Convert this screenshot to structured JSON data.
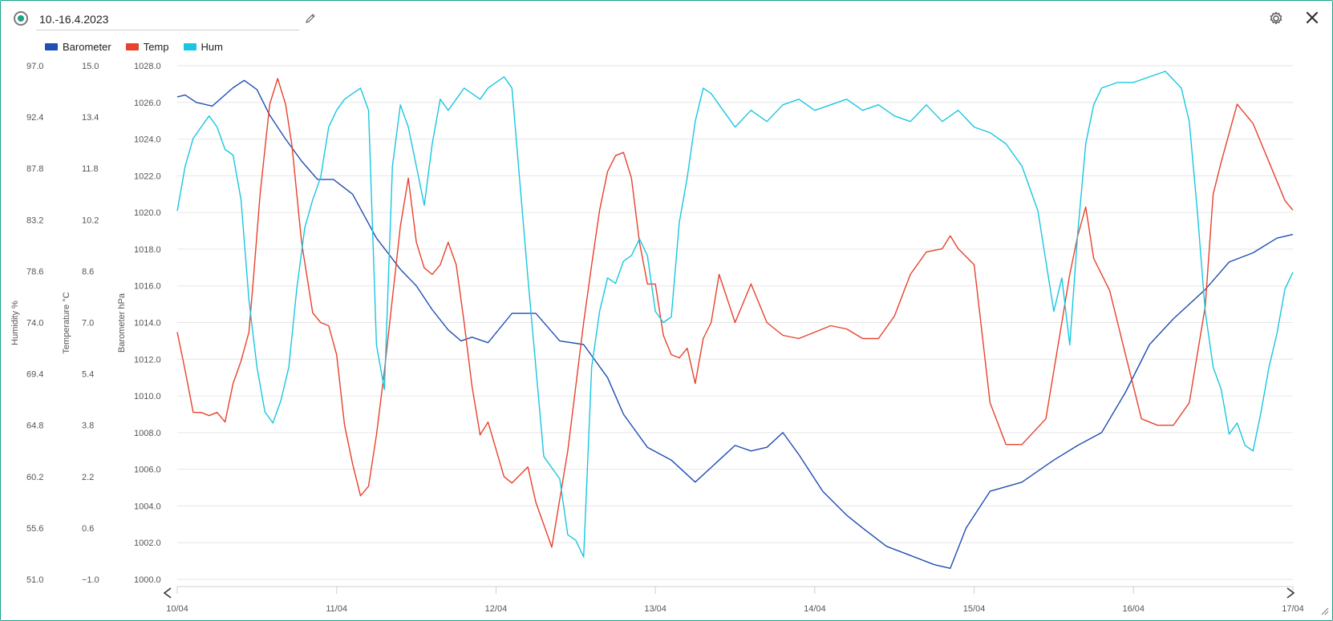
{
  "window": {
    "title": "10.-16.4.2023",
    "icons": {
      "status": "status-dot-icon",
      "edit": "pencil-icon",
      "settings": "gear-icon",
      "close": "close-icon"
    }
  },
  "chart_data": {
    "type": "line",
    "title": "",
    "legend_position": "top-left",
    "grid": true,
    "x": {
      "ticks": [
        "10/04",
        "11/04",
        "12/04",
        "13/04",
        "14/04",
        "15/04",
        "16/04",
        "17/04"
      ],
      "range_days": [
        0,
        7
      ]
    },
    "axes": {
      "humidity": {
        "label": "Humidity %",
        "range": [
          51.0,
          97.0
        ],
        "ticks": [
          "97.0",
          "92.4",
          "87.8",
          "83.2",
          "78.6",
          "74.0",
          "69.4",
          "64.8",
          "60.2",
          "55.6",
          "51.0"
        ]
      },
      "temperature": {
        "label": "Temperature °C",
        "range": [
          -1.0,
          15.0
        ],
        "ticks": [
          "15.0",
          "13.4",
          "11.8",
          "10.2",
          "8.6",
          "7.0",
          "5.4",
          "3.8",
          "2.2",
          "0.6",
          "−1.0"
        ]
      },
      "barometer": {
        "label": "Barometer hPa",
        "range": [
          1000.0,
          1028.0
        ],
        "ticks": [
          "1028.0",
          "1026.0",
          "1024.0",
          "1022.0",
          "1020.0",
          "1018.0",
          "1016.0",
          "1014.0",
          "1012.0",
          "1010.0",
          "1008.0",
          "1006.0",
          "1004.0",
          "1002.0",
          "1000.0"
        ]
      }
    },
    "series": [
      {
        "name": "Barometer",
        "axis": "barometer",
        "color": "#1f4eb4",
        "x": [
          0.0,
          0.05,
          0.12,
          0.22,
          0.35,
          0.42,
          0.5,
          0.58,
          0.68,
          0.78,
          0.88,
          0.98,
          1.1,
          1.25,
          1.4,
          1.5,
          1.6,
          1.7,
          1.78,
          1.85,
          1.95,
          2.1,
          2.25,
          2.4,
          2.55,
          2.7,
          2.8,
          2.95,
          3.1,
          3.25,
          3.4,
          3.5,
          3.6,
          3.7,
          3.8,
          3.9,
          4.05,
          4.2,
          4.3,
          4.45,
          4.6,
          4.75,
          4.85,
          4.95,
          5.1,
          5.3,
          5.5,
          5.65,
          5.8,
          5.95,
          6.1,
          6.25,
          6.45,
          6.6,
          6.75,
          6.9,
          7.0
        ],
        "y": [
          1026.3,
          1026.4,
          1026.0,
          1025.8,
          1026.8,
          1027.2,
          1026.7,
          1025.3,
          1024.0,
          1022.8,
          1021.8,
          1021.8,
          1021.0,
          1018.6,
          1016.9,
          1016.0,
          1014.7,
          1013.6,
          1013.0,
          1013.2,
          1012.9,
          1014.5,
          1014.5,
          1013.0,
          1012.8,
          1011.0,
          1009.0,
          1007.2,
          1006.5,
          1005.3,
          1006.5,
          1007.3,
          1007.0,
          1007.2,
          1008.0,
          1006.8,
          1004.8,
          1003.5,
          1002.8,
          1001.8,
          1001.3,
          1000.8,
          1000.6,
          1002.8,
          1004.8,
          1005.3,
          1006.5,
          1007.3,
          1008.0,
          1010.2,
          1012.8,
          1014.2,
          1015.8,
          1017.3,
          1017.8,
          1018.6,
          1018.8
        ]
      },
      {
        "name": "Temp",
        "axis": "temperature",
        "color": "#e8412c",
        "x": [
          0.0,
          0.05,
          0.1,
          0.15,
          0.2,
          0.25,
          0.3,
          0.35,
          0.4,
          0.45,
          0.48,
          0.52,
          0.58,
          0.63,
          0.68,
          0.72,
          0.78,
          0.85,
          0.9,
          0.95,
          1.0,
          1.05,
          1.1,
          1.15,
          1.2,
          1.25,
          1.3,
          1.4,
          1.45,
          1.5,
          1.55,
          1.6,
          1.65,
          1.7,
          1.75,
          1.8,
          1.85,
          1.9,
          1.95,
          2.05,
          2.1,
          2.2,
          2.25,
          2.35,
          2.45,
          2.55,
          2.6,
          2.65,
          2.7,
          2.75,
          2.8,
          2.85,
          2.9,
          2.95,
          3.0,
          3.05,
          3.1,
          3.15,
          3.2,
          3.25,
          3.3,
          3.35,
          3.4,
          3.5,
          3.6,
          3.7,
          3.8,
          3.9,
          4.0,
          4.1,
          4.2,
          4.3,
          4.4,
          4.5,
          4.6,
          4.7,
          4.8,
          4.85,
          4.9,
          5.0,
          5.1,
          5.2,
          5.3,
          5.45,
          5.55,
          5.6,
          5.65,
          5.7,
          5.75,
          5.85,
          5.95,
          6.05,
          6.15,
          6.25,
          6.35,
          6.45,
          6.5,
          6.55,
          6.65,
          6.75,
          6.85,
          6.95,
          7.0
        ],
        "y": [
          6.7,
          5.5,
          4.2,
          4.2,
          4.1,
          4.2,
          3.9,
          5.1,
          5.8,
          6.7,
          8.5,
          11.0,
          13.8,
          14.6,
          13.8,
          12.5,
          9.5,
          7.3,
          7.0,
          6.9,
          6.0,
          3.8,
          2.6,
          1.6,
          1.9,
          3.5,
          5.5,
          10.0,
          11.5,
          9.5,
          8.7,
          8.5,
          8.8,
          9.5,
          8.8,
          7.0,
          5.0,
          3.5,
          3.9,
          2.2,
          2.0,
          2.5,
          1.4,
          0.0,
          3.0,
          7.0,
          8.8,
          10.5,
          11.7,
          12.2,
          12.3,
          11.5,
          9.5,
          8.2,
          8.2,
          6.6,
          6.0,
          5.9,
          6.2,
          5.1,
          6.5,
          7.0,
          8.5,
          7.0,
          8.2,
          7.0,
          6.6,
          6.5,
          6.7,
          6.9,
          6.8,
          6.5,
          6.5,
          7.2,
          8.5,
          9.2,
          9.3,
          9.7,
          9.3,
          8.8,
          4.5,
          3.2,
          3.2,
          4.0,
          7.0,
          8.5,
          9.7,
          10.6,
          9.0,
          8.0,
          6.0,
          4.0,
          3.8,
          3.8,
          4.5,
          7.5,
          11.0,
          12.0,
          13.8,
          13.2,
          12.0,
          10.8,
          10.5
        ]
      },
      {
        "name": "Hum",
        "axis": "humidity",
        "color": "#18c6e2",
        "x": [
          0.0,
          0.05,
          0.1,
          0.15,
          0.2,
          0.25,
          0.3,
          0.35,
          0.4,
          0.45,
          0.5,
          0.55,
          0.6,
          0.65,
          0.7,
          0.75,
          0.8,
          0.85,
          0.9,
          0.95,
          1.0,
          1.05,
          1.1,
          1.15,
          1.2,
          1.25,
          1.3,
          1.35,
          1.4,
          1.45,
          1.5,
          1.55,
          1.6,
          1.65,
          1.7,
          1.75,
          1.8,
          1.85,
          1.9,
          1.95,
          2.0,
          2.05,
          2.1,
          2.2,
          2.3,
          2.4,
          2.45,
          2.5,
          2.55,
          2.6,
          2.65,
          2.7,
          2.75,
          2.8,
          2.85,
          2.9,
          2.95,
          3.0,
          3.05,
          3.1,
          3.15,
          3.2,
          3.25,
          3.3,
          3.35,
          3.4,
          3.45,
          3.5,
          3.6,
          3.7,
          3.8,
          3.9,
          4.0,
          4.1,
          4.2,
          4.3,
          4.4,
          4.5,
          4.6,
          4.7,
          4.8,
          4.9,
          5.0,
          5.1,
          5.2,
          5.3,
          5.4,
          5.5,
          5.55,
          5.6,
          5.65,
          5.7,
          5.75,
          5.8,
          5.9,
          6.0,
          6.1,
          6.2,
          6.3,
          6.35,
          6.4,
          6.45,
          6.5,
          6.55,
          6.6,
          6.65,
          6.7,
          6.75,
          6.8,
          6.85,
          6.9,
          6.95,
          7.0
        ],
        "y": [
          84.0,
          88.0,
          90.5,
          91.5,
          92.5,
          91.5,
          89.5,
          89.0,
          85.0,
          76.0,
          70.0,
          66.0,
          65.0,
          67.0,
          70.0,
          77.0,
          82.5,
          85.0,
          87.0,
          91.5,
          93.0,
          94.0,
          94.5,
          95.0,
          93.0,
          72.0,
          68.0,
          88.0,
          93.5,
          91.5,
          88.0,
          84.5,
          90.0,
          94.0,
          93.0,
          94.0,
          95.0,
          94.5,
          94.0,
          95.0,
          95.5,
          96.0,
          95.0,
          78.0,
          62.0,
          60.0,
          55.0,
          54.5,
          53.0,
          70.0,
          75.0,
          78.0,
          77.5,
          79.5,
          80.0,
          81.5,
          80.0,
          75.0,
          74.0,
          74.5,
          83.0,
          87.0,
          92.0,
          95.0,
          94.5,
          93.5,
          92.5,
          91.5,
          93.0,
          92.0,
          93.5,
          94.0,
          93.0,
          93.5,
          94.0,
          93.0,
          93.5,
          92.5,
          92.0,
          93.5,
          92.0,
          93.0,
          91.5,
          91.0,
          90.0,
          88.0,
          84.0,
          75.0,
          78.0,
          72.0,
          82.0,
          90.0,
          93.5,
          95.0,
          95.5,
          95.5,
          96.0,
          96.5,
          95.0,
          92.0,
          84.0,
          75.0,
          70.0,
          68.0,
          64.0,
          65.0,
          63.0,
          62.5,
          66.0,
          70.0,
          73.0,
          77.0,
          78.5
        ]
      }
    ]
  }
}
